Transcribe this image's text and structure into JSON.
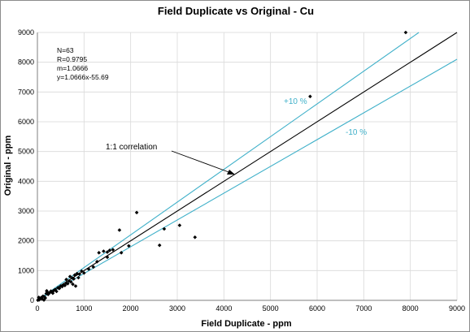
{
  "chart_data": {
    "type": "scatter",
    "title": "Field Duplicate vs Original - Cu",
    "xlabel": "Field Duplicate - ppm",
    "ylabel": "Original - ppm",
    "xlim": [
      0,
      9000
    ],
    "ylim": [
      0,
      9000
    ],
    "xticks": [
      0,
      1000,
      2000,
      3000,
      4000,
      5000,
      6000,
      7000,
      8000,
      9000
    ],
    "yticks": [
      0,
      1000,
      2000,
      3000,
      4000,
      5000,
      6000,
      7000,
      8000,
      9000
    ],
    "grid": true,
    "stats": [
      "N=63",
      "R=0.9795",
      "m=1.0666",
      "y=1.0666x-55.69"
    ],
    "lines": [
      {
        "name": "1:1 correlation",
        "slope": 1.0,
        "color": "#000000"
      },
      {
        "name": "+10 %",
        "slope": 1.1,
        "color": "#3fb0c9"
      },
      {
        "name": "-10 %",
        "slope": 0.9,
        "color": "#3fb0c9"
      }
    ],
    "annotations": {
      "one_to_one": "1:1 correlation",
      "plus10": "+10 %",
      "minus10": "-10 %"
    },
    "points": [
      [
        10,
        5
      ],
      [
        25,
        30
      ],
      [
        40,
        20
      ],
      [
        60,
        60
      ],
      [
        80,
        90
      ],
      [
        100,
        50
      ],
      [
        120,
        140
      ],
      [
        150,
        120
      ],
      [
        170,
        80
      ],
      [
        190,
        230
      ],
      [
        210,
        280
      ],
      [
        230,
        200
      ],
      [
        260,
        250
      ],
      [
        290,
        310
      ],
      [
        320,
        280
      ],
      [
        350,
        330
      ],
      [
        380,
        360
      ],
      [
        410,
        300
      ],
      [
        440,
        420
      ],
      [
        470,
        400
      ],
      [
        500,
        480
      ],
      [
        530,
        460
      ],
      [
        560,
        520
      ],
      [
        590,
        500
      ],
      [
        620,
        580
      ],
      [
        650,
        560
      ],
      [
        680,
        650
      ],
      [
        700,
        800
      ],
      [
        720,
        620
      ],
      [
        750,
        750
      ],
      [
        780,
        720
      ],
      [
        800,
        850
      ],
      [
        820,
        480
      ],
      [
        850,
        900
      ],
      [
        900,
        880
      ],
      [
        950,
        980
      ],
      [
        1000,
        920
      ],
      [
        1100,
        1050
      ],
      [
        1200,
        1120
      ],
      [
        1280,
        1300
      ],
      [
        1320,
        1600
      ],
      [
        1420,
        1650
      ],
      [
        1500,
        1450
      ],
      [
        1550,
        1680
      ],
      [
        1620,
        1700
      ],
      [
        1760,
        2360
      ],
      [
        1800,
        1600
      ],
      [
        1960,
        1830
      ],
      [
        2130,
        2950
      ],
      [
        2620,
        1850
      ],
      [
        2720,
        2400
      ],
      [
        3050,
        2520
      ],
      [
        3380,
        2120
      ],
      [
        5850,
        6850
      ],
      [
        7900,
        9000
      ],
      [
        30,
        100
      ],
      [
        140,
        10
      ],
      [
        200,
        320
      ],
      [
        330,
        240
      ],
      [
        620,
        700
      ],
      [
        760,
        540
      ],
      [
        880,
        760
      ],
      [
        1500,
        1620
      ]
    ]
  }
}
